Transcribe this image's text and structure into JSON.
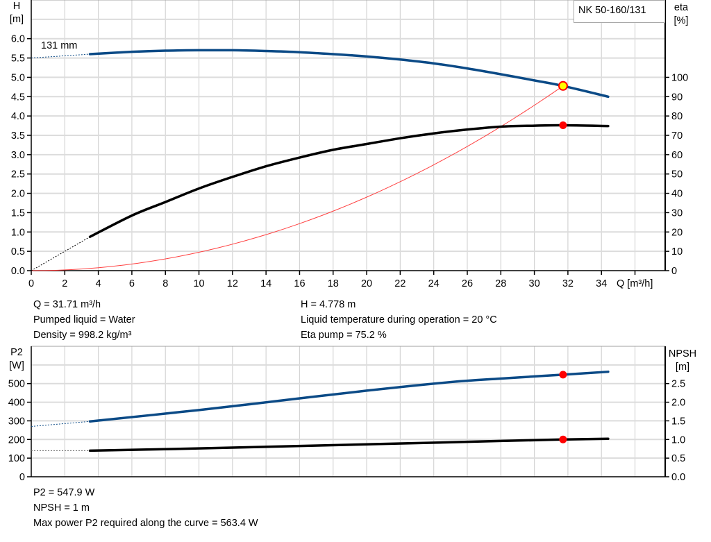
{
  "chart_data": [
    {
      "type": "line",
      "title": "NK 50-160/131",
      "xlabel": "Q [m³/h]",
      "ylabel_left": [
        "H",
        "[m]"
      ],
      "ylabel_right": [
        "eta",
        "[%]"
      ],
      "xlim": [
        0,
        37.8
      ],
      "ylim_left": [
        0,
        7
      ],
      "ylim_right": [
        0,
        140
      ],
      "x_ticks": [
        "0",
        "2",
        "4",
        "6",
        "8",
        "10",
        "12",
        "14",
        "16",
        "18",
        "20",
        "22",
        "24",
        "26",
        "28",
        "30",
        "32",
        "34"
      ],
      "y_ticks_left": [
        "0.0",
        "0.5",
        "1.0",
        "1.5",
        "2.0",
        "2.5",
        "3.0",
        "3.5",
        "4.0",
        "4.5",
        "5.0",
        "5.5",
        "6.0"
      ],
      "y_ticks_right": [
        "0",
        "10",
        "20",
        "30",
        "40",
        "50",
        "60",
        "70",
        "80",
        "90",
        "100"
      ],
      "grid": true,
      "curve_label": "131 mm",
      "series": [
        {
          "name": "H",
          "axis": "left",
          "color": "#0b4a86",
          "extrapolated": {
            "x": [
              0,
              3.5
            ],
            "y": [
              5.5,
              5.6
            ]
          },
          "x": [
            3.5,
            6,
            8,
            10,
            12,
            14,
            16,
            18,
            20,
            22,
            24,
            26,
            28,
            30,
            31.71,
            34.4
          ],
          "y": [
            5.6,
            5.66,
            5.69,
            5.7,
            5.7,
            5.68,
            5.65,
            5.6,
            5.54,
            5.46,
            5.36,
            5.23,
            5.08,
            4.92,
            4.778,
            4.5
          ]
        },
        {
          "name": "eta pump",
          "axis": "right",
          "color": "#000000",
          "extrapolated": {
            "x": [
              0,
              3.5
            ],
            "y": [
              0,
              17.5
            ]
          },
          "x": [
            3.5,
            6,
            8,
            10,
            12,
            14,
            16,
            18,
            20,
            22,
            24,
            26,
            28,
            30,
            31.71,
            34.4
          ],
          "y": [
            17.5,
            28.5,
            35.5,
            42.5,
            48.5,
            54,
            58.5,
            62.5,
            65.5,
            68.5,
            71,
            73,
            74.5,
            75,
            75.2,
            74.8
          ]
        },
        {
          "name": "System curve",
          "axis": "left",
          "color": "#ff4040",
          "kind": "quadratic",
          "x_end": 31.71,
          "y_end": 4.778
        }
      ],
      "duty_point": {
        "q": 31.71,
        "h": 4.778,
        "eta": 75.2
      }
    },
    {
      "type": "line",
      "xlim": [
        0,
        37.8
      ],
      "ylabel_left": [
        "P2",
        "[W]"
      ],
      "ylabel_right": [
        "NPSH",
        "[m]"
      ],
      "ylim_left": [
        0,
        700
      ],
      "ylim_right": [
        0,
        3.5
      ],
      "y_ticks_left": [
        "0",
        "100",
        "200",
        "300",
        "400",
        "500"
      ],
      "y_ticks_right": [
        "0.0",
        "0.5",
        "1.0",
        "1.5",
        "2.0",
        "2.5"
      ],
      "grid": true,
      "series": [
        {
          "name": "P2",
          "axis": "left",
          "color": "#0b4a86",
          "extrapolated": {
            "x": [
              0,
              3.5
            ],
            "y": [
              270,
              297
            ]
          },
          "x": [
            3.5,
            10,
            15,
            20,
            25,
            28,
            31.71,
            34.4
          ],
          "y": [
            297,
            358,
            410,
            462,
            508,
            527,
            547.9,
            563.4
          ]
        },
        {
          "name": "NPSH",
          "axis": "right",
          "color": "#000000",
          "extrapolated": {
            "x": [
              0,
              3.5
            ],
            "y": [
              0.7,
              0.7
            ]
          },
          "x": [
            3.5,
            10,
            20,
            28,
            31.71,
            34.4
          ],
          "y": [
            0.7,
            0.76,
            0.87,
            0.96,
            1.0,
            1.02
          ]
        }
      ],
      "duty_point": {
        "q": 31.71,
        "p2": 547.9,
        "npsh": 1.0
      }
    }
  ],
  "info": {
    "q": "Q = 31.71 m³/h",
    "h": "H = 4.778 m",
    "liquid": "Pumped liquid = Water",
    "temp": "Liquid temperature during operation = 20 °C",
    "density": "Density = 998.2 kg/m³",
    "eta": "Eta pump = 75.2 %",
    "p2": "P2 = 547.9 W",
    "npsh": "NPSH = 1 m",
    "maxp2": "Max power P2 required along the curve = 563.4 W"
  }
}
